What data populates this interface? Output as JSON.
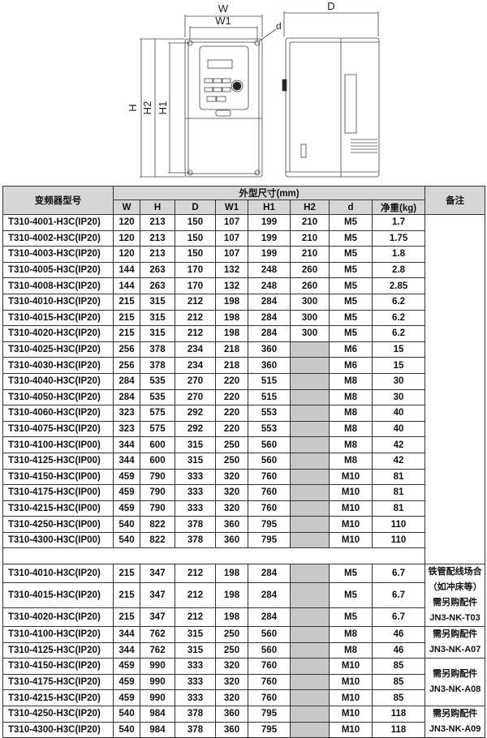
{
  "drawing": {
    "labels": {
      "W": "W",
      "W1": "W1",
      "D": "D",
      "d": "d",
      "H": "H",
      "H2": "H2",
      "H1": "H1"
    }
  },
  "table": {
    "header": {
      "model": "变频器型号",
      "group": "外型尺寸(mm)",
      "cols": [
        "W",
        "H",
        "D",
        "W1",
        "H1",
        "H2",
        "d",
        "净重(kg)"
      ],
      "remark": "备注"
    },
    "section1": [
      [
        "T310-4001-H3C(IP20)",
        "120",
        "213",
        "150",
        "107",
        "199",
        "210",
        "M5",
        "1.7"
      ],
      [
        "T310-4002-H3C(IP20)",
        "120",
        "213",
        "150",
        "107",
        "199",
        "210",
        "M5",
        "1.75"
      ],
      [
        "T310-4003-H3C(IP20)",
        "120",
        "213",
        "150",
        "107",
        "199",
        "210",
        "M5",
        "1.8"
      ],
      [
        "T310-4005-H3C(IP20)",
        "144",
        "263",
        "170",
        "132",
        "248",
        "260",
        "M5",
        "2.8"
      ],
      [
        "T310-4008-H3C(IP20)",
        "144",
        "263",
        "170",
        "132",
        "248",
        "260",
        "M5",
        "2.85"
      ],
      [
        "T310-4010-H3C(IP20)",
        "215",
        "315",
        "212",
        "198",
        "284",
        "300",
        "M5",
        "6.2"
      ],
      [
        "T310-4015-H3C(IP20)",
        "215",
        "315",
        "212",
        "198",
        "284",
        "300",
        "M5",
        "6.2"
      ],
      [
        "T310-4020-H3C(IP20)",
        "215",
        "315",
        "212",
        "198",
        "284",
        "300",
        "M5",
        "6.2"
      ],
      [
        "T310-4025-H3C(IP20)",
        "256",
        "378",
        "234",
        "218",
        "360",
        "",
        "M6",
        "15"
      ],
      [
        "T310-4030-H3C(IP20)",
        "256",
        "378",
        "234",
        "218",
        "360",
        "",
        "M6",
        "15"
      ],
      [
        "T310-4040-H3C(IP20)",
        "284",
        "535",
        "270",
        "220",
        "515",
        "",
        "M8",
        "30"
      ],
      [
        "T310-4050-H3C(IP20)",
        "284",
        "535",
        "270",
        "220",
        "515",
        "",
        "M8",
        "30"
      ],
      [
        "T310-4060-H3C(IP20)",
        "323",
        "575",
        "292",
        "220",
        "553",
        "",
        "M8",
        "40"
      ],
      [
        "T310-4075-H3C(IP20)",
        "323",
        "575",
        "292",
        "220",
        "553",
        "",
        "M8",
        "40"
      ],
      [
        "T310-4100-H3C(IP00)",
        "344",
        "600",
        "315",
        "250",
        "560",
        "",
        "M8",
        "42"
      ],
      [
        "T310-4125-H3C(IP00)",
        "344",
        "600",
        "315",
        "250",
        "560",
        "",
        "M8",
        "42"
      ],
      [
        "T310-4150-H3C(IP00)",
        "459",
        "790",
        "333",
        "320",
        "760",
        "",
        "M10",
        "81"
      ],
      [
        "T310-4175-H3C(IP00)",
        "459",
        "790",
        "333",
        "320",
        "760",
        "",
        "M10",
        "81"
      ],
      [
        "T310-4215-H3C(IP00)",
        "459",
        "790",
        "333",
        "320",
        "760",
        "",
        "M10",
        "81"
      ],
      [
        "T310-4250-H3C(IP00)",
        "540",
        "822",
        "378",
        "360",
        "795",
        "",
        "M10",
        "110"
      ],
      [
        "T310-4300-H3C(IP00)",
        "540",
        "822",
        "378",
        "360",
        "795",
        "",
        "M10",
        "110"
      ]
    ],
    "section2": [
      [
        "T310-4010-H3C(IP20)",
        "215",
        "347",
        "212",
        "198",
        "284",
        "",
        "M5",
        "6.7"
      ],
      [
        "T310-4015-H3C(IP20)",
        "215",
        "347",
        "212",
        "198",
        "284",
        "",
        "M5",
        "6.7"
      ],
      [
        "T310-4020-H3C(IP20)",
        "215",
        "347",
        "212",
        "198",
        "284",
        "",
        "M5",
        "6.7"
      ],
      [
        "T310-4100-H3C(IP20)",
        "344",
        "762",
        "315",
        "250",
        "560",
        "",
        "M8",
        "46"
      ],
      [
        "T310-4125-H3C(IP20)",
        "344",
        "762",
        "315",
        "250",
        "560",
        "",
        "M8",
        "46"
      ],
      [
        "T310-4150-H3C(IP20)",
        "459",
        "990",
        "333",
        "320",
        "760",
        "",
        "M10",
        "85"
      ],
      [
        "T310-4175-H3C(IP20)",
        "459",
        "990",
        "333",
        "320",
        "760",
        "",
        "M10",
        "85"
      ],
      [
        "T310-4215-H3C(IP20)",
        "459",
        "990",
        "333",
        "320",
        "760",
        "",
        "M10",
        "85"
      ],
      [
        "T310-4250-H3C(IP20)",
        "540",
        "984",
        "378",
        "360",
        "795",
        "",
        "M10",
        "118"
      ],
      [
        "T310-4300-H3C(IP20)",
        "540",
        "984",
        "378",
        "360",
        "795",
        "",
        "M10",
        "118"
      ]
    ],
    "remarks2": [
      {
        "span": 3,
        "lines": [
          "铁管配线场合",
          "（如冲床等）",
          "需另购配件",
          "JN3-NK-T03"
        ]
      },
      {
        "span": 2,
        "lines": [
          "需另购配件",
          "JN3-NK-A07"
        ]
      },
      {
        "span": 3,
        "lines": [
          "需另购配件",
          "JN3-NK-A08"
        ]
      },
      {
        "span": 2,
        "lines": [
          "需另购配件",
          "JN3-NK-A09"
        ]
      }
    ]
  }
}
